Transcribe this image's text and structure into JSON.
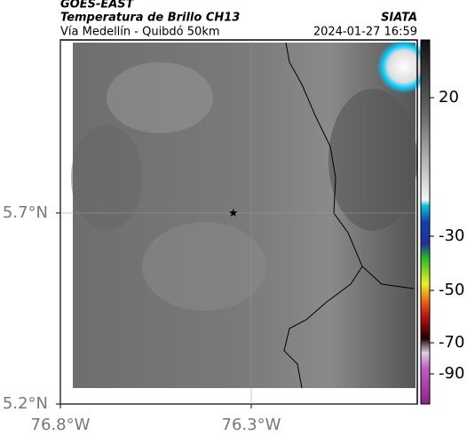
{
  "header": {
    "title": "GOES-EAST",
    "subtitle": "Temperatura de Brillo CH13",
    "location": "Vía Medellín - Quibdó 50km",
    "source": "SIATA",
    "datetime": "2024-01-27 16:59"
  },
  "map": {
    "lonlim": [
      -76.8,
      -75.865
    ],
    "latlim": [
      5.2,
      6.153
    ],
    "lonticks": [
      {
        "value": -76.8,
        "label": "76.8°W"
      },
      {
        "value": -76.3,
        "label": "76.3°W"
      }
    ],
    "latticks": [
      {
        "value": 5.7,
        "label": "5.7°N"
      },
      {
        "value": 5.2,
        "label": "5.2°N"
      }
    ],
    "marker": {
      "lon": -76.347,
      "lat": 5.7
    }
  },
  "colorbar": {
    "ticks": [
      20,
      -30,
      -50,
      -70,
      -90
    ]
  }
}
